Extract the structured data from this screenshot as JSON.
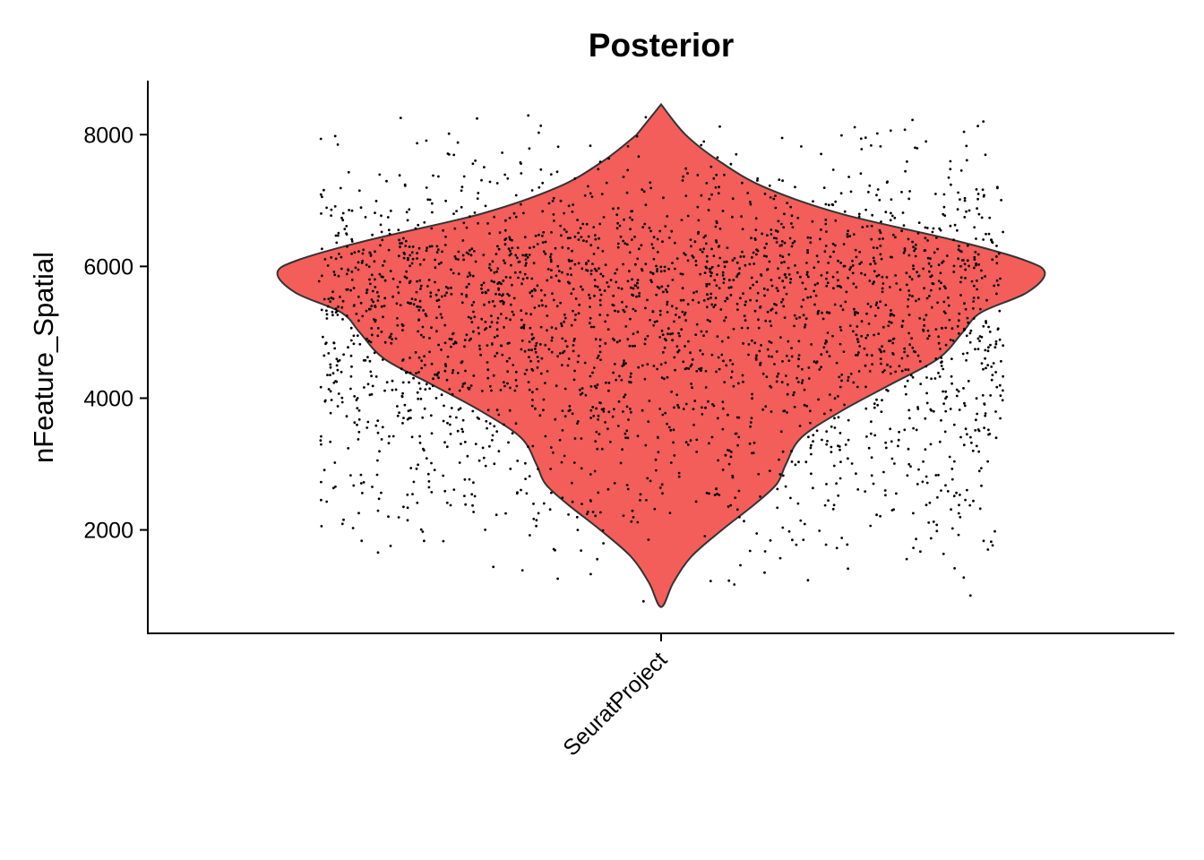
{
  "chart_data": {
    "type": "violin",
    "title": "Posterior",
    "xlabel": "",
    "ylabel": "nFeature_Spatial",
    "categories": [
      "SeuratProject"
    ],
    "yticks": [
      2000,
      4000,
      6000,
      8000
    ],
    "ylim": [
      430,
      8820
    ],
    "grid": false,
    "legend": "none",
    "fill_color": "#F35E5A",
    "outline_color": "#333333",
    "point_color": "#000000",
    "violin_range": [
      830,
      8460
    ],
    "violin_profile": [
      {
        "y": 830,
        "w": 0.0
      },
      {
        "y": 1200,
        "w": 0.04
      },
      {
        "y": 1600,
        "w": 0.1
      },
      {
        "y": 2000,
        "w": 0.2
      },
      {
        "y": 2400,
        "w": 0.31
      },
      {
        "y": 2700,
        "w": 0.38
      },
      {
        "y": 3000,
        "w": 0.41
      },
      {
        "y": 3400,
        "w": 0.46
      },
      {
        "y": 3800,
        "w": 0.59
      },
      {
        "y": 4200,
        "w": 0.75
      },
      {
        "y": 4600,
        "w": 0.91
      },
      {
        "y": 5000,
        "w": 0.99
      },
      {
        "y": 5300,
        "w": 1.05
      },
      {
        "y": 5600,
        "w": 1.2
      },
      {
        "y": 5900,
        "w": 1.26
      },
      {
        "y": 6100,
        "w": 1.19
      },
      {
        "y": 6400,
        "w": 0.96
      },
      {
        "y": 6800,
        "w": 0.59
      },
      {
        "y": 7200,
        "w": 0.34
      },
      {
        "y": 7600,
        "w": 0.19
      },
      {
        "y": 8000,
        "w": 0.08
      },
      {
        "y": 8460,
        "w": 0.0
      }
    ],
    "n_points": 2700
  }
}
